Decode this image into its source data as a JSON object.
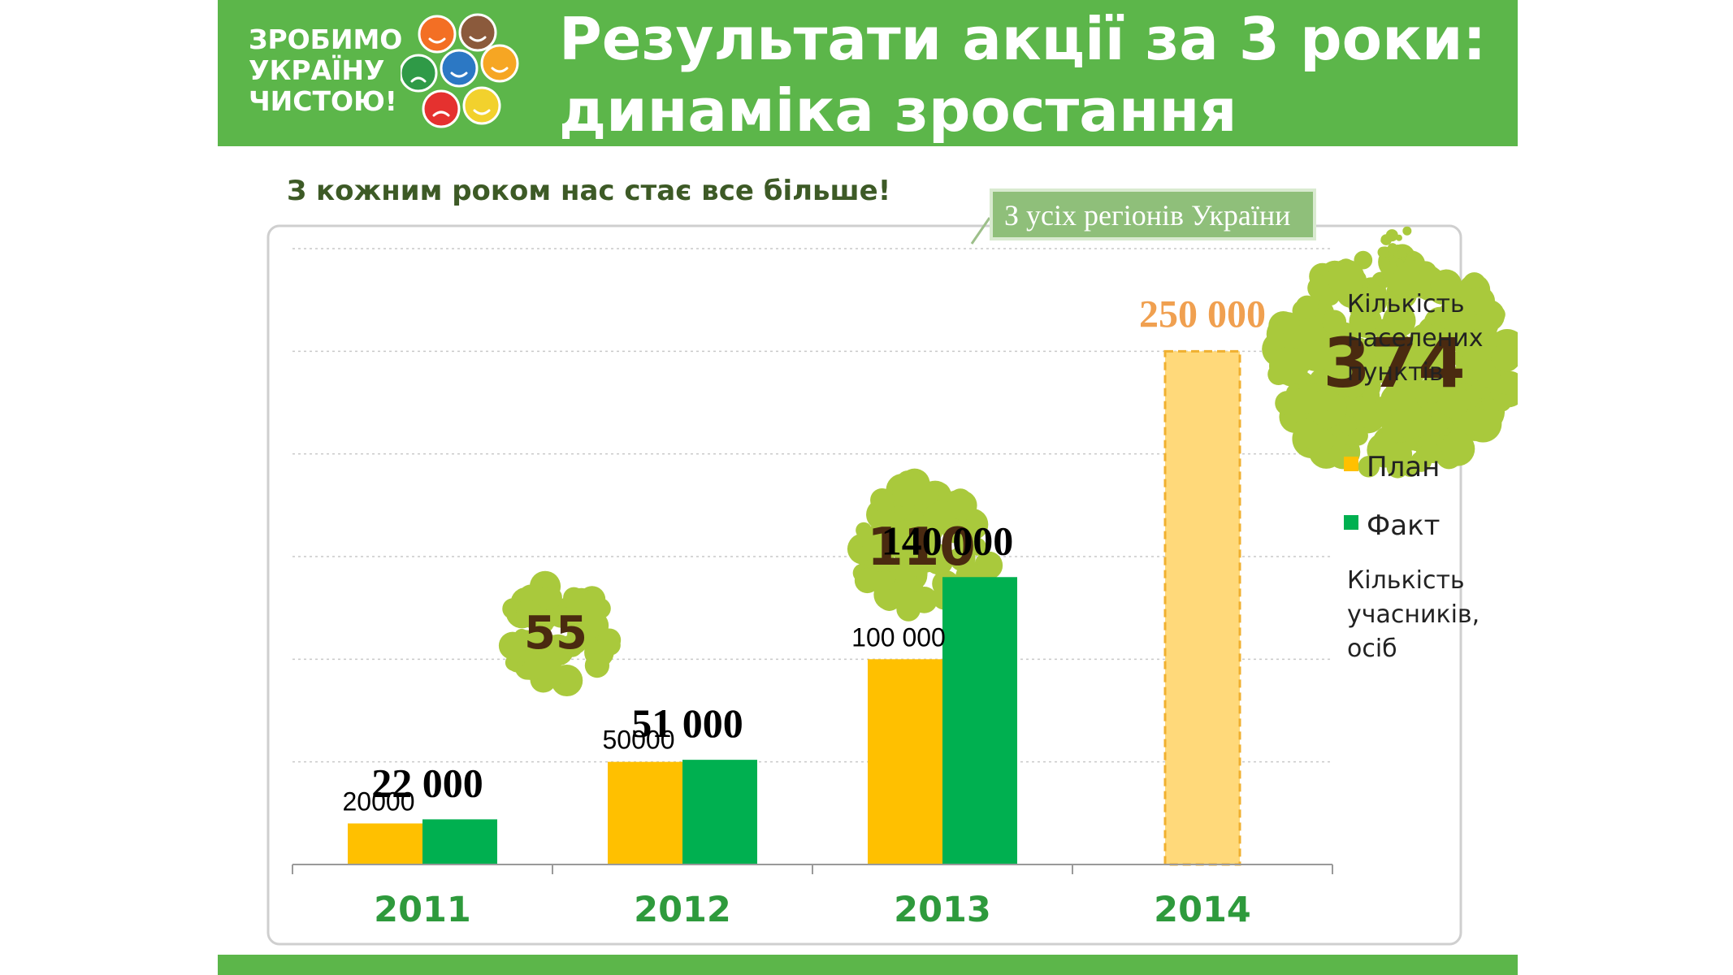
{
  "header": {
    "logo_lines": [
      "ЗРОБИМО",
      "УКРАЇНУ",
      "ЧИСТОЮ!"
    ],
    "title_lines": [
      "Результати акції за 3 роки:",
      "динаміка зростання"
    ]
  },
  "subtitle": "З кожним роком нас стає  все більше!",
  "callout": "З усіх регіонів України",
  "legend": {
    "settlements_title": [
      "Кількість",
      "населених",
      "пунктів"
    ],
    "plan": "План",
    "fact": "Факт",
    "participants_title": [
      "Кількість",
      "учасників,",
      "осіб"
    ]
  },
  "colors": {
    "header_green": "#5cb64a",
    "plan": "#ffc000",
    "fact": "#00b050",
    "plan_2014": "#ffd97a",
    "bubble": "#a9c93c",
    "axis_text": "#2e9a3c",
    "label_2014": "#f0a050"
  },
  "icons": [
    "logo-faces-icon",
    "settlement-bubble-icon"
  ],
  "chart_data": {
    "type": "bar",
    "categories": [
      "2011",
      "2012",
      "2013",
      "2014"
    ],
    "series": [
      {
        "name": "План",
        "values": [
          20000,
          50000,
          100000,
          250000
        ]
      },
      {
        "name": "Факт",
        "values": [
          22000,
          51000,
          140000,
          null
        ]
      }
    ],
    "plan_labels": [
      "20000",
      "50000",
      "100 000",
      "250 000"
    ],
    "fact_labels": [
      "22 000",
      "51 000",
      "140 000",
      null
    ],
    "settlements": {
      "values": [
        55,
        110,
        374,
        null
      ],
      "labels": [
        "55",
        "110",
        "374",
        null
      ]
    },
    "ylim": [
      0,
      300000
    ],
    "grid": true,
    "legend_position": "right"
  }
}
